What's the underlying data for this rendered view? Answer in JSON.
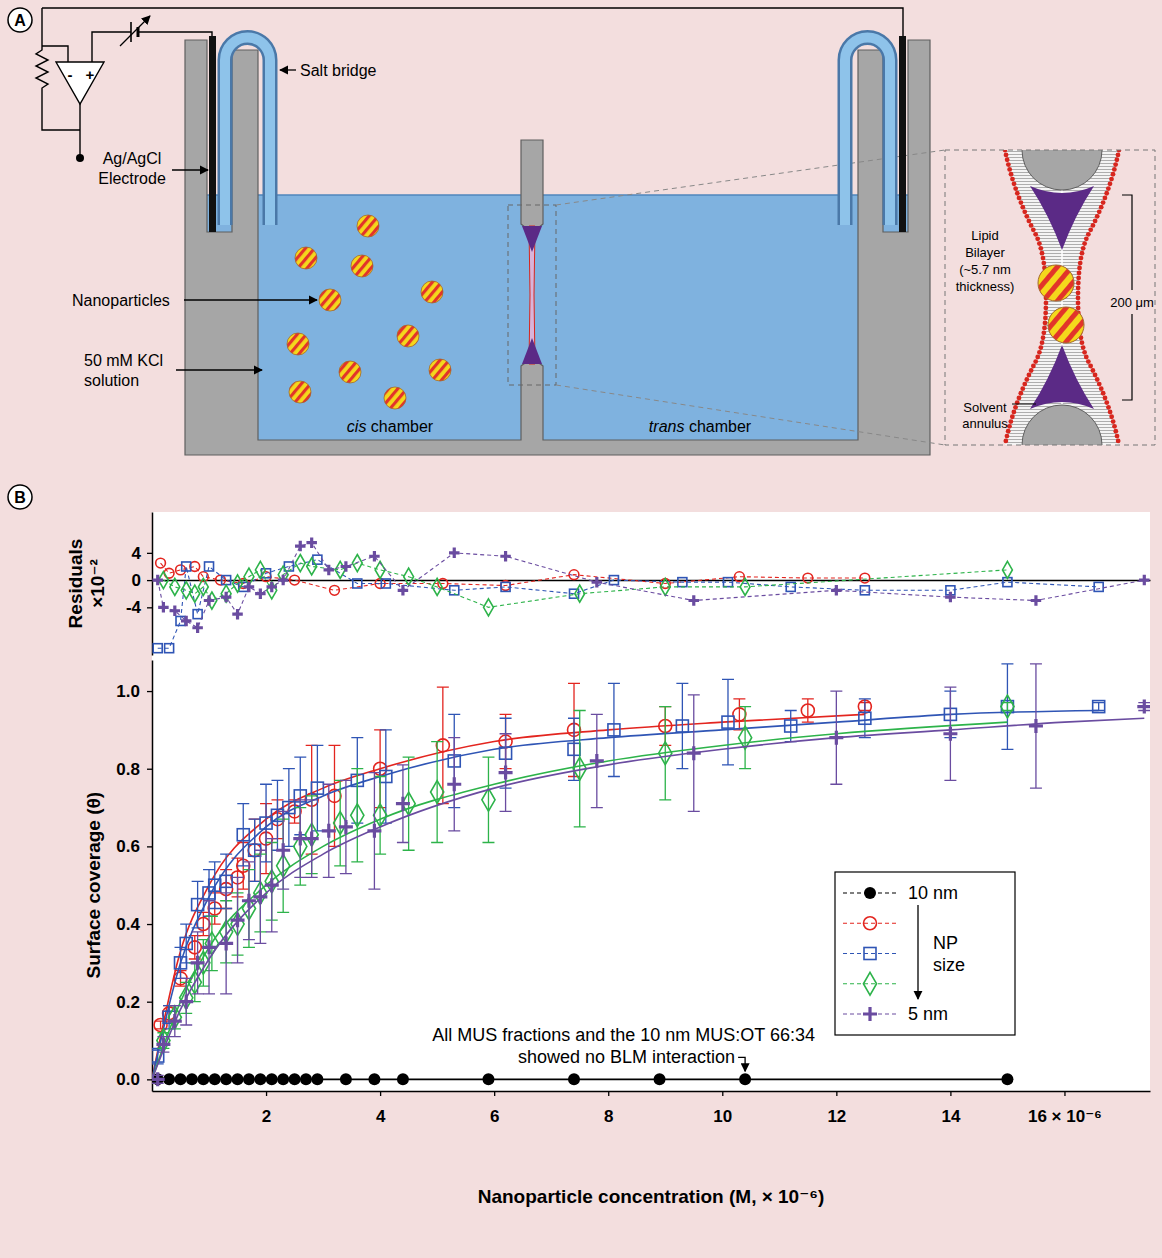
{
  "diagram": {
    "panel_label": "A",
    "op_amp": {
      "minus": "-",
      "plus": "+"
    },
    "labels": {
      "electrode": [
        "Ag/AgCl",
        "Electrode"
      ],
      "salt_bridge": "Salt bridge",
      "nanoparticles": "Nanoparticles",
      "solution": [
        "50 mM KCl",
        "solution"
      ],
      "cis": "cis chamber",
      "trans": "trans chamber"
    },
    "inset": {
      "bilayer": [
        "Lipid",
        "Bilayer",
        "(~5.7 nm",
        "thickness)"
      ],
      "aperture": "200 μm",
      "annulus": [
        "Solvent",
        "annulus"
      ]
    }
  },
  "chart_data": [
    {
      "type": "scatter",
      "panel_label": "B",
      "ylabel": [
        "Residuals",
        "×10⁻²"
      ],
      "xlim": [
        0,
        17.5
      ],
      "ylim": [
        -11,
        10
      ],
      "yticks": [
        -4,
        0,
        4
      ],
      "tick_labels": "y",
      "grid": false,
      "series": [
        {
          "color": "#e3251f",
          "marker": "circle-open",
          "line_style": "dashed",
          "x": [
            0.15,
            0.3,
            0.5,
            0.75,
            0.9,
            1.2,
            1.6,
            2.0,
            2.5,
            3.2,
            4.0,
            5.1,
            6.2,
            7.4,
            9.0,
            10.3,
            11.5,
            12.5
          ],
          "values": [
            2.5,
            1,
            1.5,
            2,
            0.5,
            0,
            -0.5,
            0.5,
            0,
            -1.5,
            -0.5,
            -0.5,
            -0.8,
            0.8,
            -0.5,
            0.5,
            0.3,
            0.3
          ]
        },
        {
          "color": "#2f55b5",
          "marker": "square-open",
          "line_style": "dashed",
          "x": [
            0.1,
            0.3,
            0.5,
            0.6,
            0.8,
            1.0,
            1.3,
            1.6,
            2.0,
            2.4,
            2.9,
            3.6,
            4.1,
            5.3,
            6.2,
            7.4,
            8.1,
            9.3,
            10.1,
            11.2,
            12.5,
            14.0,
            15.0,
            16.6
          ],
          "values": [
            -10,
            -10,
            -6,
            2,
            -5,
            2,
            0,
            -1,
            1,
            2,
            3,
            -0.5,
            -0.5,
            -1.5,
            -1,
            -2,
            0,
            -0.3,
            -0.3,
            -1,
            -1.5,
            -1.5,
            -0.3,
            -1
          ]
        },
        {
          "color": "#2db34a",
          "marker": "diamond-open",
          "line_style": "dashed",
          "x": [
            0.2,
            0.4,
            0.6,
            0.75,
            0.9,
            1.05,
            1.3,
            1.5,
            1.7,
            1.9,
            2.1,
            2.3,
            2.6,
            2.8,
            3.3,
            3.6,
            4.0,
            4.5,
            5.0,
            5.9,
            7.5,
            9.0,
            10.4,
            15.0
          ],
          "values": [
            0,
            -1,
            -1.5,
            -2,
            -1,
            -3,
            -2,
            -0.5,
            0.5,
            1.5,
            -1.5,
            0.8,
            2.5,
            2,
            1.5,
            2.5,
            1.5,
            0.5,
            -1,
            -4,
            -2,
            -1,
            -1,
            1.5
          ]
        },
        {
          "color": "#6a4ca0",
          "marker": "plus",
          "line_style": "dashed",
          "x": [
            0.1,
            0.2,
            0.4,
            0.6,
            0.8,
            1.0,
            1.3,
            1.5,
            1.7,
            1.9,
            2.1,
            2.3,
            2.6,
            2.8,
            3.1,
            3.4,
            3.9,
            4.4,
            5.3,
            6.2,
            7.8,
            9.5,
            12.0,
            14.0,
            15.5,
            17.4
          ],
          "values": [
            0,
            -4,
            -4.5,
            -6,
            -7,
            -3,
            -2.5,
            -5,
            -1,
            -2,
            -1,
            0,
            5,
            5.5,
            1.5,
            2,
            3.5,
            -1.5,
            4,
            3.5,
            -0.3,
            -3,
            -1.5,
            -2.5,
            -3,
            0
          ]
        }
      ]
    },
    {
      "type": "scatter",
      "xlabel": "Nanoparticle concentration (M, × 10⁻⁶)",
      "ylabel": "Surface coverage (θ)",
      "xlim": [
        0,
        17.5
      ],
      "ylim": [
        -0.03,
        1.08
      ],
      "xticks": [
        2,
        4,
        6,
        8,
        10,
        12,
        14,
        {
          "value": 16,
          "label": "16 × 10⁻⁶"
        }
      ],
      "yticks": [
        {
          "value": 0,
          "label": "0.0"
        },
        0.2,
        0.4,
        0.6,
        0.8,
        {
          "value": 1,
          "label": "1.0"
        }
      ],
      "grid": false,
      "legend": "right",
      "legend_note": "NP size",
      "annotations": [
        {
          "text": [
            "All MUS fractions and the 10 nm MUS:OT 66:34",
            "showed no BLM interaction"
          ],
          "x": 10.4,
          "y": 0
        }
      ],
      "series": [
        {
          "name": "10 nm",
          "color": "#000000",
          "marker": "circle",
          "x": [
            0.1,
            0.3,
            0.5,
            0.7,
            0.9,
            1.1,
            1.3,
            1.5,
            1.7,
            1.9,
            2.1,
            2.3,
            2.5,
            2.7,
            2.9,
            3.4,
            3.9,
            4.4,
            5.9,
            7.4,
            8.9,
            10.4,
            15.0
          ],
          "values": [
            0,
            0,
            0,
            0,
            0,
            0,
            0,
            0,
            0,
            0,
            0,
            0,
            0,
            0,
            0,
            0,
            0,
            0,
            0,
            0,
            0,
            0,
            0
          ],
          "fit": {
            "x": [
              0,
              15
            ],
            "values": [
              0,
              0
            ]
          }
        },
        {
          "color": "#e3251f",
          "marker": "circle-open",
          "x": [
            0.15,
            0.3,
            0.5,
            0.75,
            0.9,
            1.1,
            1.3,
            1.5,
            1.6,
            1.8,
            2.0,
            2.2,
            2.5,
            2.8,
            3.2,
            4.0,
            5.1,
            6.2,
            7.4,
            9.0,
            10.3,
            11.5,
            12.5
          ],
          "values": [
            0.14,
            0.17,
            0.26,
            0.34,
            0.4,
            0.44,
            0.49,
            0.52,
            0.55,
            0.59,
            0.62,
            0.67,
            0.69,
            0.72,
            0.73,
            0.8,
            0.86,
            0.87,
            0.9,
            0.91,
            0.94,
            0.95,
            0.96
          ],
          "errors": [
            0.01,
            0.02,
            0.02,
            0.03,
            0.03,
            0.04,
            0.05,
            0.05,
            0.06,
            0.08,
            0.09,
            0.05,
            0.03,
            0.14,
            0.13,
            0.1,
            0.15,
            0.07,
            0.12,
            0.05,
            0.04,
            0.03,
            0.01
          ],
          "fit": {
            "x": [
              0,
              0.5,
              1,
              2,
              3,
              4,
              6,
              8,
              10,
              12.5
            ],
            "values": [
              0,
              0.33,
              0.5,
              0.67,
              0.75,
              0.8,
              0.87,
              0.9,
              0.92,
              0.94
            ]
          }
        },
        {
          "color": "#2f55b5",
          "marker": "square-open",
          "x": [
            0.1,
            0.3,
            0.5,
            0.6,
            0.8,
            1.0,
            1.1,
            1.3,
            1.6,
            1.8,
            2.0,
            2.2,
            2.4,
            2.6,
            2.9,
            3.6,
            4.1,
            5.3,
            6.2,
            7.4,
            8.1,
            9.3,
            10.1,
            11.2,
            12.5,
            14.0,
            15.0,
            16.6
          ],
          "values": [
            0.06,
            0.16,
            0.3,
            0.35,
            0.45,
            0.48,
            0.5,
            0.51,
            0.63,
            0.59,
            0.66,
            0.68,
            0.7,
            0.73,
            0.75,
            0.77,
            0.78,
            0.82,
            0.84,
            0.85,
            0.9,
            0.91,
            0.92,
            0.91,
            0.93,
            0.94,
            0.96,
            0.96
          ],
          "errors": [
            0.02,
            0.03,
            0.04,
            0.05,
            0.06,
            0.06,
            0.06,
            0.07,
            0.08,
            0.08,
            0.1,
            0.09,
            0.1,
            0.1,
            0.11,
            0.11,
            0.12,
            0.12,
            0.09,
            0.08,
            0.12,
            0.11,
            0.11,
            0.04,
            0.05,
            0.06,
            0.11,
            0.01
          ],
          "fit": {
            "x": [
              0,
              0.5,
              1,
              2,
              3,
              4,
              6,
              8,
              10,
              12,
              14,
              16.6
            ],
            "values": [
              0,
              0.3,
              0.47,
              0.65,
              0.73,
              0.78,
              0.85,
              0.88,
              0.9,
              0.92,
              0.94,
              0.95
            ]
          }
        },
        {
          "color": "#2db34a",
          "marker": "diamond-open",
          "x": [
            0.2,
            0.4,
            0.6,
            0.75,
            0.9,
            1.05,
            1.3,
            1.5,
            1.7,
            1.9,
            2.1,
            2.3,
            2.6,
            2.8,
            3.3,
            3.6,
            4.0,
            4.5,
            5.0,
            5.9,
            7.5,
            9.0,
            10.4,
            15.0
          ],
          "values": [
            0.1,
            0.16,
            0.21,
            0.25,
            0.3,
            0.35,
            0.38,
            0.4,
            0.44,
            0.48,
            0.51,
            0.55,
            0.6,
            0.63,
            0.66,
            0.68,
            0.68,
            0.71,
            0.74,
            0.72,
            0.8,
            0.84,
            0.88,
            0.96
          ],
          "errors": [
            0.02,
            0.03,
            0.04,
            0.05,
            0.06,
            0.07,
            0.08,
            0.08,
            0.1,
            0.1,
            0.1,
            0.12,
            0.1,
            0.1,
            0.11,
            0.12,
            0.1,
            0.12,
            0.13,
            0.11,
            0.15,
            0.12,
            0.08,
            0.01
          ],
          "fit": {
            "x": [
              0,
              0.5,
              1,
              2,
              3,
              4,
              6,
              8,
              10,
              12,
              15
            ],
            "values": [
              0,
              0.2,
              0.34,
              0.5,
              0.6,
              0.67,
              0.76,
              0.82,
              0.86,
              0.89,
              0.92
            ]
          }
        },
        {
          "name": "5 nm",
          "color": "#6a4ca0",
          "marker": "plus",
          "x": [
            0.1,
            0.2,
            0.4,
            0.6,
            0.8,
            1.0,
            1.3,
            1.5,
            1.7,
            1.9,
            2.1,
            2.3,
            2.6,
            2.8,
            3.1,
            3.4,
            3.9,
            4.4,
            5.3,
            6.2,
            7.8,
            9.5,
            12.0,
            14.0,
            15.5,
            17.4
          ],
          "values": [
            0.0,
            0.09,
            0.15,
            0.2,
            0.3,
            0.34,
            0.35,
            0.41,
            0.46,
            0.47,
            0.5,
            0.59,
            0.62,
            0.62,
            0.64,
            0.65,
            0.64,
            0.71,
            0.76,
            0.79,
            0.82,
            0.84,
            0.88,
            0.89,
            0.91,
            0.96
          ],
          "errors": [
            0.01,
            0.02,
            0.04,
            0.06,
            0.08,
            0.12,
            0.13,
            0.11,
            0.1,
            0.12,
            0.12,
            0.1,
            0.1,
            0.1,
            0.12,
            0.12,
            0.15,
            0.1,
            0.12,
            0.1,
            0.12,
            0.15,
            0.12,
            0.12,
            0.16,
            0.01
          ],
          "fit": {
            "x": [
              0,
              0.5,
              1,
              2,
              3,
              4,
              6,
              8,
              10,
              12,
              14,
              16,
              17.4
            ],
            "values": [
              0,
              0.18,
              0.31,
              0.48,
              0.58,
              0.65,
              0.75,
              0.81,
              0.85,
              0.88,
              0.9,
              0.92,
              0.93
            ]
          }
        }
      ]
    }
  ]
}
